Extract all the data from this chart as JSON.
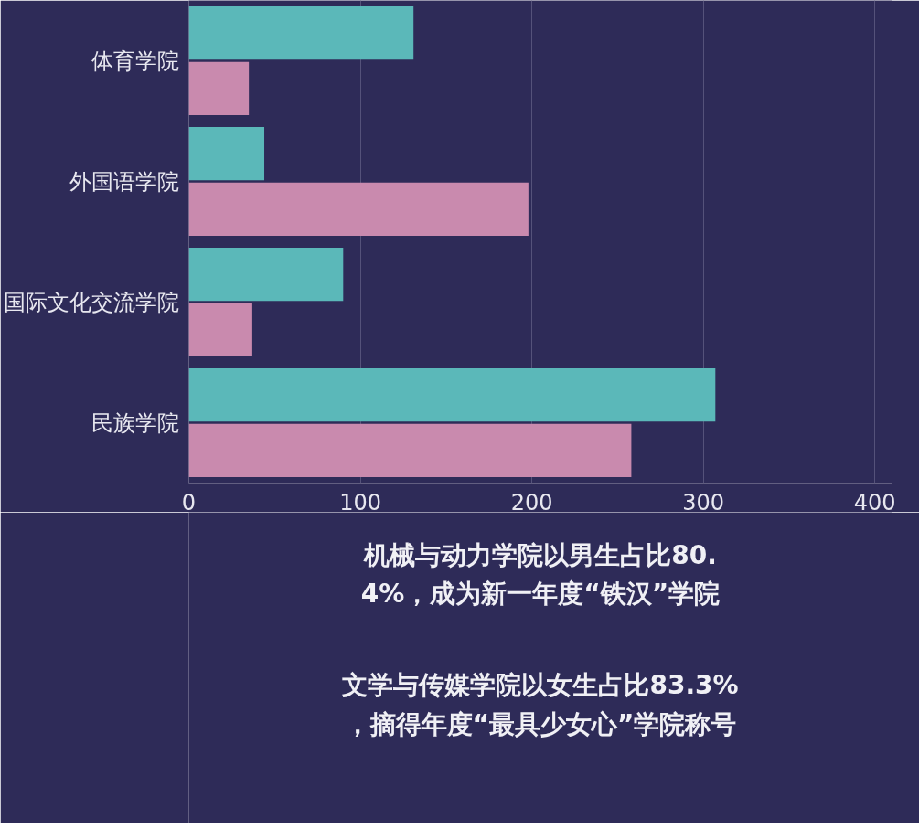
{
  "chart_data": {
    "type": "bar",
    "orientation": "horizontal",
    "categories": [
      "体育学院",
      "外国语学院",
      "国际文化交流学院",
      "民族学院"
    ],
    "series": [
      {
        "color": "#5bb8b9",
        "values": [
          131,
          44,
          90,
          307
        ]
      },
      {
        "color": "#c98aae",
        "values": [
          35,
          198,
          37,
          258
        ]
      }
    ],
    "xlim": [
      0,
      410
    ],
    "xticks": [
      0,
      100,
      200,
      300,
      400
    ],
    "grid": "x",
    "annotations": [
      "机械与动力学院以男生占比80.4%，成为新一年度“铁汉”学院",
      "文学与传媒学院以女生占比83.3%，摘得年度“最具少女心”学院称号"
    ]
  }
}
